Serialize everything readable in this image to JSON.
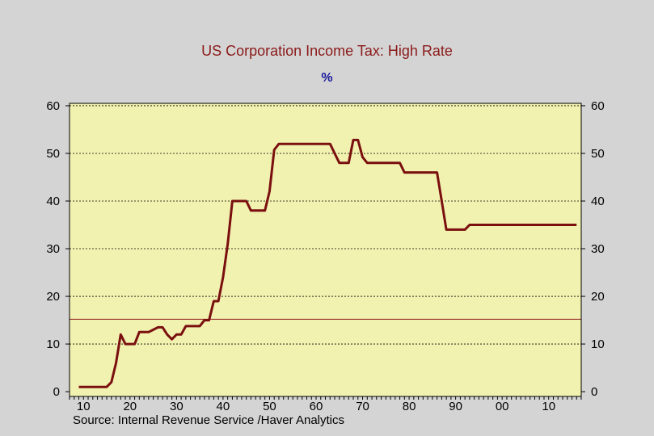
{
  "chart_data": {
    "type": "line",
    "title": "US Corporation Income Tax: High Rate",
    "subtitle": "%",
    "source": "Source:  Internal Revenue Service /Haver Analytics",
    "xlim": [
      1907,
      2017
    ],
    "ylim": [
      -1,
      60.5
    ],
    "x_ticks": [
      1910,
      1920,
      1930,
      1940,
      1950,
      1960,
      1970,
      1980,
      1990,
      2000,
      2010
    ],
    "x_tick_labels": [
      "10",
      "20",
      "30",
      "40",
      "50",
      "60",
      "70",
      "80",
      "90",
      "00",
      "10"
    ],
    "y_ticks": [
      0,
      10,
      20,
      30,
      40,
      50,
      60
    ],
    "y_tick_labels": [
      "0",
      "10",
      "20",
      "30",
      "40",
      "50",
      "60"
    ],
    "grid": "horizontal dotted",
    "axes": "left and right",
    "reference_line": 15.2,
    "colors": {
      "plot_background": "#f2f2b0",
      "page_background": "#d4d4d4",
      "series": "#7a0f0f",
      "title": "#8b1a1a",
      "subtitle": "#1a1a9c",
      "reference_line": "#8b1a1a"
    },
    "series": [
      {
        "x": [
          1909,
          1910,
          1911,
          1912,
          1913,
          1914,
          1915,
          1916,
          1917,
          1918,
          1919,
          1920,
          1921,
          1922,
          1923,
          1924,
          1925,
          1926,
          1927,
          1928,
          1929,
          1930,
          1931,
          1932,
          1933,
          1934,
          1935,
          1936,
          1937,
          1938,
          1939,
          1940,
          1941,
          1942,
          1943,
          1944,
          1945,
          1946,
          1947,
          1948,
          1949,
          1950,
          1951,
          1952,
          1953,
          1954,
          1955,
          1956,
          1957,
          1958,
          1959,
          1960,
          1961,
          1962,
          1963,
          1964,
          1965,
          1966,
          1967,
          1968,
          1969,
          1970,
          1971,
          1972,
          1973,
          1974,
          1975,
          1976,
          1977,
          1978,
          1979,
          1980,
          1981,
          1982,
          1983,
          1984,
          1985,
          1986,
          1987,
          1988,
          1989,
          1990,
          1991,
          1992,
          1993,
          1994,
          1995,
          1996,
          1997,
          1998,
          1999,
          2000,
          2001,
          2002,
          2003,
          2004,
          2005,
          2006,
          2007,
          2008,
          2009,
          2010,
          2011,
          2012,
          2013,
          2014,
          2015,
          2016
        ],
        "values": [
          1,
          1,
          1,
          1,
          1,
          1,
          1,
          2,
          6,
          12,
          10,
          10,
          10,
          12.5,
          12.5,
          12.5,
          13,
          13.5,
          13.5,
          12,
          11,
          12,
          12,
          13.75,
          13.75,
          13.75,
          13.75,
          15,
          15,
          19,
          19,
          24,
          31,
          40,
          40,
          40,
          40,
          38,
          38,
          38,
          38,
          42,
          50.75,
          52,
          52,
          52,
          52,
          52,
          52,
          52,
          52,
          52,
          52,
          52,
          52,
          50,
          48,
          48,
          48,
          52.8,
          52.8,
          49.2,
          48,
          48,
          48,
          48,
          48,
          48,
          48,
          48,
          46,
          46,
          46,
          46,
          46,
          46,
          46,
          46,
          40,
          34,
          34,
          34,
          34,
          34,
          35,
          35,
          35,
          35,
          35,
          35,
          35,
          35,
          35,
          35,
          35,
          35,
          35,
          35,
          35,
          35,
          35,
          35,
          35,
          35,
          35,
          35,
          35,
          35
        ]
      }
    ]
  }
}
